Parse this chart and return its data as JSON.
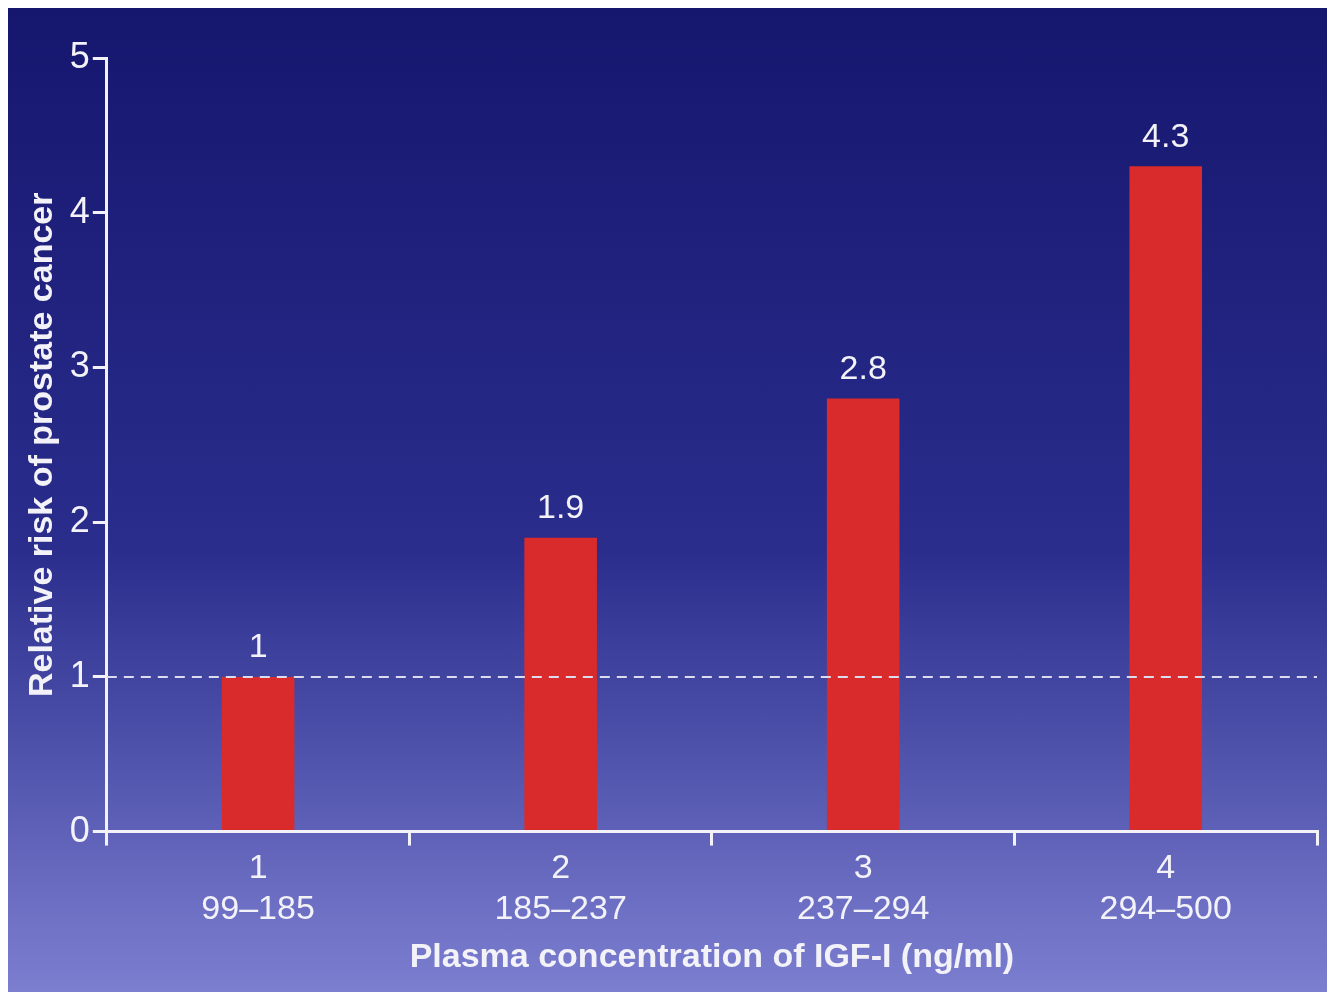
{
  "chart_data": {
    "type": "bar",
    "xlabel": "Plasma concentration of IGF-I (ng/ml)",
    "ylabel": "Relative risk of prostate cancer",
    "categories": [
      "1\n99–185",
      "2\n185–237",
      "3\n237–294",
      "4\n294–500"
    ],
    "values": [
      1,
      1.9,
      2.8,
      4.3
    ],
    "color": "#d92b2b",
    "ylim": [
      0,
      5
    ],
    "yticks": [
      0,
      1,
      2,
      3,
      4,
      5
    ],
    "ref_lines": [
      {
        "axis": "y",
        "value": 1,
        "color": "#dcdcf0",
        "line_style": "dashed"
      }
    ],
    "data_labels": true,
    "legend": false,
    "grid": false
  }
}
